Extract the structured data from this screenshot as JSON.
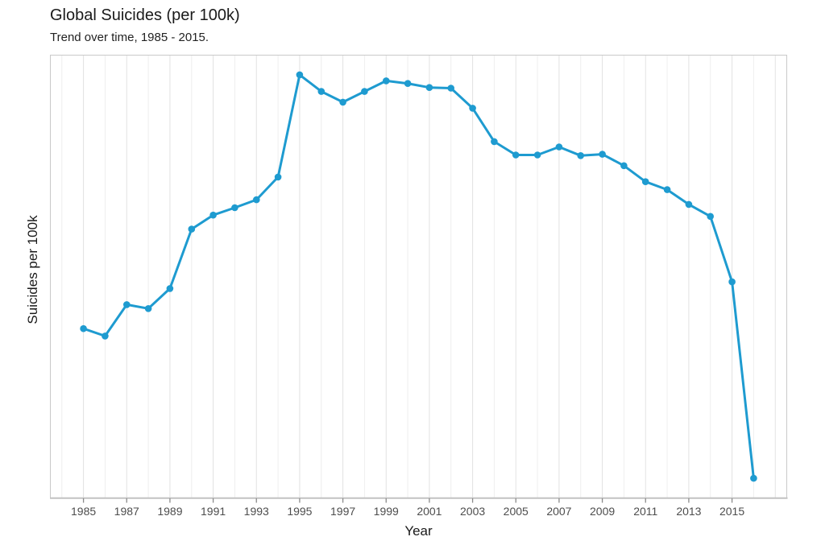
{
  "header": {
    "title": "Global Suicides (per 100k)",
    "subtitle": "Trend over time, 1985 - 2015."
  },
  "chart_data": {
    "type": "line",
    "title": "Global Suicides (per 100k)",
    "subtitle": "Trend over time, 1985 - 2015.",
    "xlabel": "Year",
    "ylabel": "Suicides per 100k",
    "x": [
      1985,
      1986,
      1987,
      1988,
      1989,
      1990,
      1991,
      1992,
      1993,
      1994,
      1995,
      1996,
      1997,
      1998,
      1999,
      2000,
      2001,
      2002,
      2003,
      2004,
      2005,
      2006,
      2007,
      2008,
      2009,
      2010,
      2011,
      2012,
      2013,
      2014,
      2015,
      2016
    ],
    "values": [
      11.5,
      11.39,
      11.86,
      11.8,
      12.1,
      12.99,
      13.2,
      13.31,
      13.43,
      13.77,
      15.3,
      15.05,
      14.89,
      15.05,
      15.21,
      15.17,
      15.11,
      15.1,
      14.8,
      14.3,
      14.1,
      14.1,
      14.22,
      14.09,
      14.11,
      13.94,
      13.7,
      13.58,
      13.36,
      13.18,
      12.2,
      9.26
    ],
    "x_ticks": [
      1985,
      1987,
      1989,
      1991,
      1993,
      1995,
      1997,
      1999,
      2001,
      2003,
      2005,
      2007,
      2009,
      2011,
      2013,
      2015
    ],
    "xlim": [
      1983.45,
      2017.55
    ],
    "ylim": [
      8.96,
      15.6
    ],
    "y_tick_labels_shown": false,
    "grid": "vertical gridlines at every year, no horizontal gridlines",
    "legend": "none",
    "style": {
      "line_color": "#1e9bd0",
      "point_color": "#1e9bd0",
      "grid_major_color": "#e2e2e2",
      "grid_minor_color": "#eeeeee",
      "panel_border_color": "#c9c9c9",
      "axis_line_color": "#c2c2c2",
      "tick_mark_color": "#8a8a8a",
      "tick_label_color": "#4d4d4d",
      "title_color": "#1a1a1a",
      "background_color": "#ffffff"
    }
  }
}
